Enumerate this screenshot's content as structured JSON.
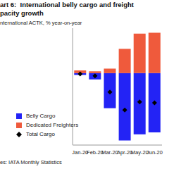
{
  "chart_data": {
    "type": "bar",
    "title": "art 6:  International belly cargo and freight\npacity growth",
    "y_label": "nternational ACTK, % year-on-year",
    "source": "es: IATA Monthly Statistics",
    "categories": [
      "Jan-20",
      "Feb-20",
      "Mar-20",
      "Apr-20",
      "May-20",
      "Jun-20"
    ],
    "series": [
      {
        "name": "Belly Cargo",
        "color": "#2323f5",
        "type": "bar",
        "values": [
          -2,
          -7,
          -39,
          -75,
          -68,
          -66
        ]
      },
      {
        "name": "Dedicated Freighters",
        "color": "#ef5a3c",
        "type": "bar",
        "values": [
          3,
          2,
          5,
          27,
          44,
          45
        ]
      },
      {
        "name": "Total Cargo",
        "color": "#000000",
        "type": "scatter",
        "marker": "diamond",
        "values": [
          -1,
          -3,
          -21,
          -41,
          -32,
          -33
        ]
      }
    ],
    "ylim": [
      -80,
      50
    ],
    "stacked": true,
    "legend": "left",
    "tick_labels": "x",
    "grid": false
  }
}
